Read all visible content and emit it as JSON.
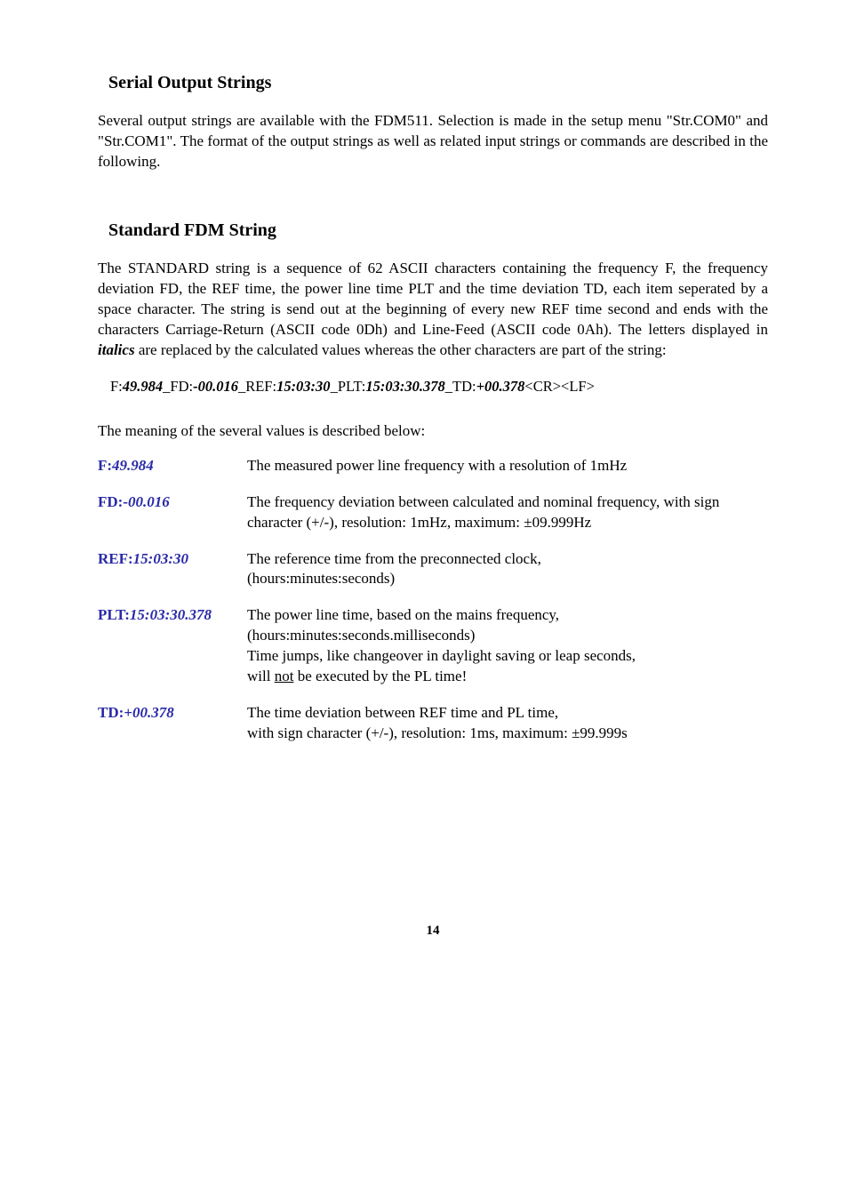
{
  "section1": {
    "title": "Serial Output Strings",
    "para": "Several output strings are available with the FDM511. Selection is made in the setup menu \"Str.COM0\" and \"Str.COM1\". The format of the output strings as well as related input strings or commands are described in the following."
  },
  "section2": {
    "title": "Standard  FDM  String",
    "para1": "The STANDARD string is a sequence of 62 ASCII characters containing the frequency F, the frequency deviation FD, the REF time, the power line time PLT and the time deviation TD, each item seperated by a space character. The string is send out at the beginning of every new REF time second and ends with the characters Carriage-Return (ASCII code 0Dh) and Line-Feed (ASCII code 0Ah). The letters displayed in ",
    "para1_italics": "italics",
    "para1_cont": " are replaced by the calculated values whereas the other characters are part of the string:",
    "code": {
      "p1": "F:",
      "v1": "49.984",
      "p2": "_FD:",
      "v2": "-00.016",
      "p3": "_REF:",
      "v3": "15:03:30",
      "p4": "_PLT:",
      "v4": "15:03:30.378",
      "p5": "_TD:",
      "v5": "+00.378",
      "tail": "<CR><LF>"
    },
    "para2": "The meaning of the several values is described below:"
  },
  "defs": {
    "f": {
      "label_prefix": "F:",
      "label_val": "49.984",
      "text": "The measured power line frequency with a resolution of 1mHz"
    },
    "fd": {
      "label_prefix": "FD:",
      "label_val": "-00.016",
      "text": "The frequency deviation between calculated and nominal frequency, with sign character (+/-),  resolution: 1mHz, maximum: ±09.999Hz"
    },
    "ref": {
      "label_prefix": "REF:",
      "label_val": "15:03:30",
      "text1": "The reference time from the preconnected clock,",
      "text2": "(hours:minutes:seconds)"
    },
    "plt": {
      "label_prefix": "PLT:",
      "label_val": "15:03:30.378",
      "text1": "The power line time, based on the mains frequency,",
      "text2": "(hours:minutes:seconds.milliseconds)",
      "text3": "Time jumps, like changeover in daylight saving or leap seconds,",
      "text4a": "will ",
      "text4u": "not",
      "text4b": " be executed by the PL time!"
    },
    "td": {
      "label_prefix": "TD:",
      "label_val": "+00.378",
      "text1": "The time deviation between REF time and PL time,",
      "text2": "with sign character (+/-),  resolution: 1ms, maximum: ±99.999s"
    }
  },
  "pagenum": "14"
}
